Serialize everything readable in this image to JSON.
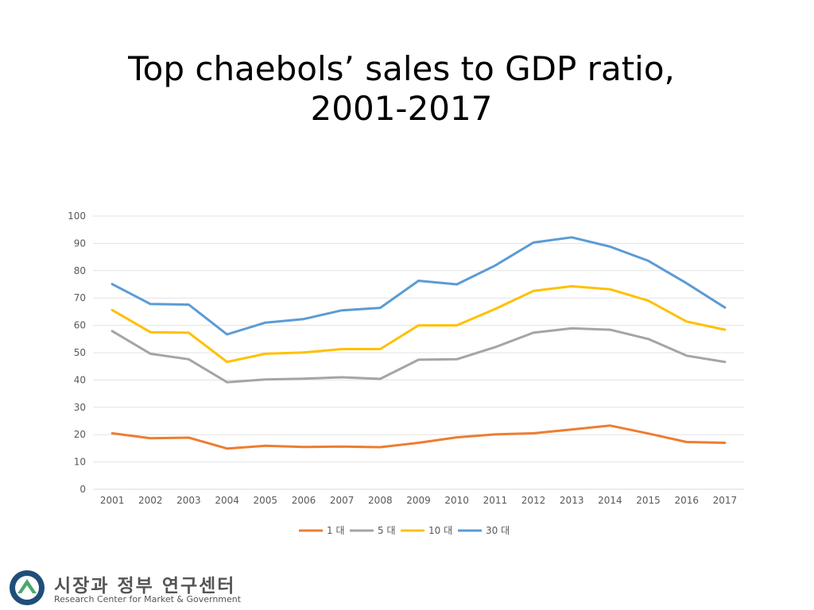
{
  "title_line1": "Top chaebols’ sales to GDP ratio,",
  "title_line2": "2001-2017",
  "chart_data": {
    "type": "line",
    "x": [
      "2001",
      "2002",
      "2003",
      "2004",
      "2005",
      "2006",
      "2007",
      "2008",
      "2009",
      "2010",
      "2011",
      "2012",
      "2013",
      "2014",
      "2015",
      "2016",
      "2017"
    ],
    "ylim": [
      0,
      100
    ],
    "yticks": [
      0,
      10,
      20,
      30,
      40,
      50,
      60,
      70,
      80,
      90,
      100
    ],
    "grid": true,
    "legend_position": "bottom",
    "series": [
      {
        "name": "1 대",
        "color": "#ED7D31",
        "values": [
          20.5,
          18.7,
          18.9,
          14.9,
          15.9,
          15.5,
          15.6,
          15.4,
          17.0,
          19.0,
          20.1,
          20.5,
          21.9,
          23.3,
          20.4,
          17.3,
          17.0
        ]
      },
      {
        "name": "5 대",
        "color": "#A5A5A5",
        "values": [
          57.9,
          49.6,
          47.6,
          39.2,
          40.2,
          40.5,
          41.0,
          40.4,
          47.4,
          47.6,
          52.0,
          57.3,
          58.9,
          58.4,
          55.0,
          48.9,
          46.6
        ]
      },
      {
        "name": "10 대",
        "color": "#FFC000",
        "values": [
          65.6,
          57.5,
          57.3,
          46.6,
          49.6,
          50.1,
          51.3,
          51.3,
          60.0,
          60.0,
          66.0,
          72.6,
          74.3,
          73.2,
          69.0,
          61.4,
          58.4
        ]
      },
      {
        "name": "30 대",
        "color": "#5B9BD5",
        "values": [
          75.1,
          67.8,
          67.6,
          56.7,
          61.0,
          62.3,
          65.5,
          66.4,
          76.3,
          75.0,
          81.9,
          90.3,
          92.2,
          88.8,
          83.6,
          75.4,
          66.5
        ]
      }
    ]
  },
  "logo": {
    "text_ko": "시장과 정부 연구센터",
    "text_en": "Research Center for Market & Government",
    "colors": {
      "outer": "#1F4E79",
      "inner": "#4CA86A"
    }
  }
}
